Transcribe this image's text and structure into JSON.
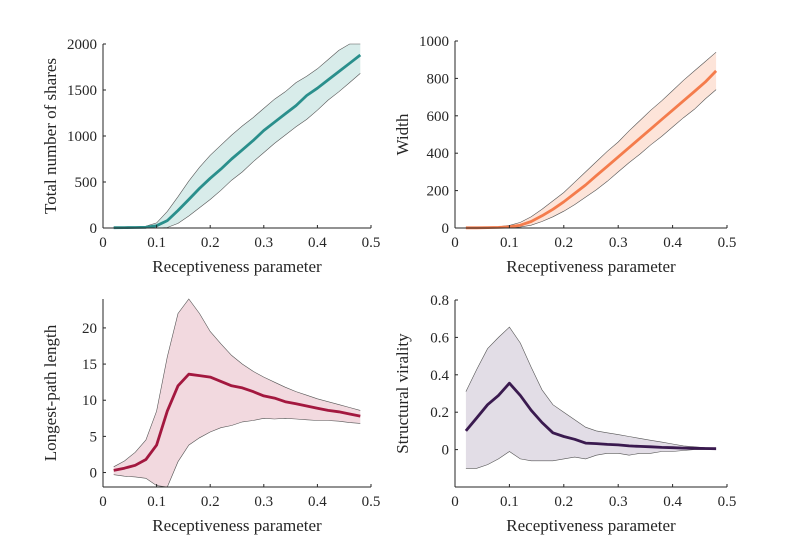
{
  "chart_data": [
    {
      "type": "line",
      "name": "total-shares",
      "xlabel": "Receptiveness parameter",
      "ylabel": "Total number of shares",
      "xlim": [
        0,
        0.5
      ],
      "ylim": [
        0,
        2000
      ],
      "xticks": [
        0,
        0.1,
        0.2,
        0.3,
        0.4,
        0.5
      ],
      "xtick_labels": [
        "0",
        "0.1",
        "0.2",
        "0.3",
        "0.4",
        "0.5"
      ],
      "yticks": [
        0,
        500,
        1000,
        1500,
        2000
      ],
      "ytick_labels": [
        "0",
        "500",
        "1000",
        "1500",
        "2000"
      ],
      "color": "#2a8f8c",
      "band_color": "#d8ecea",
      "x": [
        0.02,
        0.04,
        0.06,
        0.08,
        0.1,
        0.12,
        0.14,
        0.16,
        0.18,
        0.2,
        0.22,
        0.24,
        0.26,
        0.28,
        0.3,
        0.32,
        0.34,
        0.36,
        0.38,
        0.4,
        0.42,
        0.44,
        0.46,
        0.48
      ],
      "mean": [
        3,
        4,
        5,
        8,
        25,
        80,
        190,
        310,
        430,
        540,
        640,
        750,
        850,
        950,
        1060,
        1150,
        1240,
        1330,
        1440,
        1520,
        1610,
        1700,
        1790,
        1880
      ],
      "lower": [
        0,
        0,
        0,
        0,
        0,
        5,
        50,
        130,
        220,
        310,
        410,
        520,
        610,
        720,
        820,
        920,
        1010,
        1100,
        1180,
        1280,
        1390,
        1480,
        1580,
        1680
      ],
      "upper": [
        8,
        9,
        11,
        20,
        55,
        180,
        340,
        510,
        660,
        790,
        900,
        1010,
        1110,
        1200,
        1300,
        1400,
        1480,
        1580,
        1650,
        1730,
        1830,
        1930,
        2020,
        2080
      ]
    },
    {
      "type": "line",
      "name": "width",
      "xlabel": "Receptiveness parameter",
      "ylabel": "Width",
      "xlim": [
        0,
        0.5
      ],
      "ylim": [
        0,
        1000
      ],
      "xticks": [
        0,
        0.1,
        0.2,
        0.3,
        0.4,
        0.5
      ],
      "xtick_labels": [
        "0",
        "0.1",
        "0.2",
        "0.3",
        "0.4",
        "0.5"
      ],
      "yticks": [
        0,
        200,
        400,
        600,
        800,
        1000
      ],
      "ytick_labels": [
        "0",
        "200",
        "400",
        "600",
        "800",
        "1000"
      ],
      "color": "#f47c4c",
      "band_color": "#fde4d9",
      "x": [
        0.02,
        0.04,
        0.06,
        0.08,
        0.1,
        0.12,
        0.14,
        0.16,
        0.18,
        0.2,
        0.22,
        0.24,
        0.26,
        0.28,
        0.3,
        0.32,
        0.34,
        0.36,
        0.38,
        0.4,
        0.42,
        0.44,
        0.46,
        0.48
      ],
      "mean": [
        1,
        1,
        2,
        3,
        6,
        15,
        35,
        65,
        100,
        140,
        185,
        230,
        280,
        330,
        380,
        430,
        480,
        530,
        580,
        630,
        680,
        730,
        780,
        840
      ],
      "lower": [
        0,
        0,
        0,
        0,
        1,
        5,
        15,
        35,
        60,
        90,
        125,
        165,
        205,
        250,
        300,
        350,
        395,
        445,
        490,
        540,
        590,
        635,
        690,
        740
      ],
      "upper": [
        3,
        4,
        5,
        7,
        14,
        30,
        60,
        100,
        145,
        190,
        245,
        300,
        355,
        410,
        460,
        520,
        575,
        630,
        680,
        735,
        790,
        840,
        890,
        940
      ]
    },
    {
      "type": "line",
      "name": "longest-path",
      "xlabel": "Receptiveness parameter",
      "ylabel": "Longest-path length",
      "xlim": [
        0,
        0.5
      ],
      "ylim": [
        -2,
        24
      ],
      "xticks": [
        0,
        0.1,
        0.2,
        0.3,
        0.4,
        0.5
      ],
      "xtick_labels": [
        "0",
        "0.1",
        "0.2",
        "0.3",
        "0.4",
        "0.5"
      ],
      "yticks": [
        0,
        5,
        10,
        15,
        20
      ],
      "ytick_labels": [
        "0",
        "5",
        "10",
        "15",
        "20"
      ],
      "color": "#a3183f",
      "band_color": "#f2d9df",
      "x": [
        0.02,
        0.04,
        0.06,
        0.08,
        0.1,
        0.12,
        0.14,
        0.16,
        0.18,
        0.2,
        0.22,
        0.24,
        0.26,
        0.28,
        0.3,
        0.32,
        0.34,
        0.36,
        0.38,
        0.4,
        0.42,
        0.44,
        0.46,
        0.48
      ],
      "mean": [
        0.3,
        0.6,
        1.0,
        1.8,
        3.8,
        8.5,
        12.0,
        13.6,
        13.4,
        13.2,
        12.6,
        12.0,
        11.7,
        11.2,
        10.6,
        10.3,
        9.8,
        9.5,
        9.2,
        8.9,
        8.6,
        8.4,
        8.1,
        7.8
      ],
      "lower": [
        -0.3,
        -0.5,
        -0.6,
        -0.8,
        -1.8,
        -2.0,
        1.5,
        3.8,
        4.8,
        5.6,
        6.2,
        6.5,
        7.0,
        7.2,
        7.5,
        7.4,
        7.5,
        7.4,
        7.3,
        7.2,
        7.2,
        7.1,
        6.9,
        6.8
      ],
      "upper": [
        0.8,
        1.6,
        2.8,
        4.5,
        8.5,
        16.0,
        22.0,
        24.0,
        22.0,
        19.5,
        17.8,
        16.2,
        15.0,
        14.0,
        13.2,
        12.5,
        11.8,
        11.2,
        10.7,
        10.2,
        9.8,
        9.4,
        9.0,
        8.6
      ]
    },
    {
      "type": "line",
      "name": "structural-virality",
      "xlabel": "Receptiveness parameter",
      "ylabel": "Structural virality",
      "xlim": [
        0,
        0.5
      ],
      "ylim": [
        -0.2,
        0.8
      ],
      "xticks": [
        0,
        0.1,
        0.2,
        0.3,
        0.4,
        0.5
      ],
      "xtick_labels": [
        "0",
        "0.1",
        "0.2",
        "0.3",
        "0.4",
        "0.5"
      ],
      "yticks": [
        0,
        0.2,
        0.4,
        0.6,
        0.8
      ],
      "ytick_labels": [
        "0",
        "0.2",
        "0.4",
        "0.6",
        "0.8"
      ],
      "color": "#3a1a4f",
      "band_color": "#e2dde6",
      "x": [
        0.02,
        0.04,
        0.06,
        0.08,
        0.1,
        0.12,
        0.14,
        0.16,
        0.18,
        0.2,
        0.22,
        0.24,
        0.26,
        0.28,
        0.3,
        0.32,
        0.34,
        0.36,
        0.38,
        0.4,
        0.42,
        0.44,
        0.46,
        0.48
      ],
      "mean": [
        0.1,
        0.17,
        0.24,
        0.29,
        0.355,
        0.29,
        0.21,
        0.145,
        0.09,
        0.07,
        0.055,
        0.035,
        0.032,
        0.028,
        0.025,
        0.02,
        0.017,
        0.015,
        0.012,
        0.01,
        0.008,
        0.007,
        0.006,
        0.005
      ],
      "lower": [
        -0.1,
        -0.1,
        -0.08,
        -0.05,
        -0.01,
        -0.05,
        -0.06,
        -0.06,
        -0.06,
        -0.05,
        -0.04,
        -0.05,
        -0.03,
        -0.02,
        -0.02,
        -0.03,
        -0.02,
        -0.02,
        -0.01,
        -0.01,
        -0.005,
        0,
        0,
        0
      ],
      "upper": [
        0.31,
        0.43,
        0.54,
        0.6,
        0.655,
        0.57,
        0.44,
        0.32,
        0.24,
        0.2,
        0.16,
        0.12,
        0.1,
        0.09,
        0.08,
        0.07,
        0.06,
        0.05,
        0.04,
        0.03,
        0.02,
        0.015,
        0.01,
        0.008
      ]
    }
  ]
}
